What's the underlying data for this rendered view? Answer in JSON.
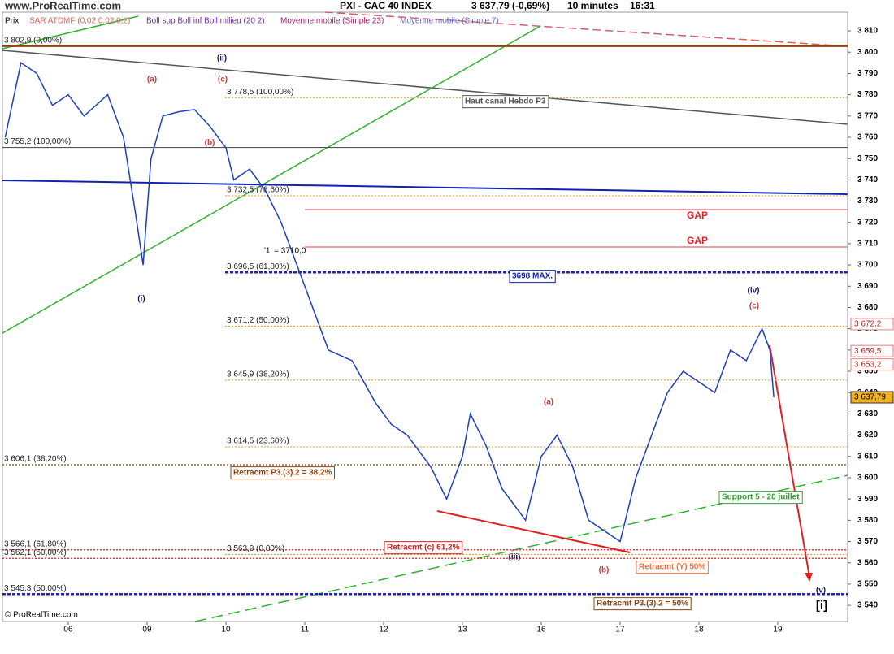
{
  "chart_data": {
    "type": "line",
    "title": "PXI - CAC 40 INDEX",
    "subtitle": "3 637,79 (-0,69%)",
    "timeframe": "10 minutes",
    "time": "16:31",
    "watermark": "www.ProRealTime.com",
    "copyright": "© ProRealTime.com",
    "indicators": [
      {
        "name": "SAR ATDMF (0,02 0,02 0,2)",
        "color": "#e06060"
      },
      {
        "name": "Boll sup Boll inf Boll milieu (20 2)",
        "color": "#7030a0"
      },
      {
        "name": "Moyenne mobile (Simple 23)",
        "color": "#a0206a"
      },
      {
        "name": "Moyenne mobile (Simple 7)",
        "color": "#6a6ad0"
      }
    ],
    "x": [
      0.2,
      0.4,
      0.6,
      0.8,
      1.0,
      1.2,
      1.5,
      1.7,
      1.85,
      1.95,
      2.05,
      2.2,
      2.4,
      2.6,
      2.8,
      3.0,
      3.1,
      3.3,
      3.5,
      3.7,
      3.9,
      4.1,
      4.3,
      4.6,
      4.9,
      5.1,
      5.3,
      5.6,
      5.8,
      6.0,
      6.1,
      6.3,
      6.5,
      6.8,
      7.0,
      7.2,
      7.4,
      7.6,
      7.8,
      8.0,
      8.1,
      8.2,
      8.4,
      8.6,
      8.8,
      9.0,
      9.2,
      9.4,
      9.6,
      9.8,
      9.9,
      9.95
    ],
    "series": [
      {
        "name": "Prix",
        "color": "#1f3fbf",
        "values": [
          3760,
          3795,
          3790,
          3775,
          3780,
          3770,
          3780,
          3760,
          3725,
          3700,
          3750,
          3770,
          3772,
          3773,
          3765,
          3755,
          3740,
          3745,
          3735,
          3720,
          3700,
          3680,
          3660,
          3655,
          3635,
          3625,
          3620,
          3605,
          3590,
          3610,
          3630,
          3615,
          3595,
          3580,
          3610,
          3620,
          3605,
          3580,
          3575,
          3570,
          3585,
          3600,
          3620,
          3640,
          3650,
          3645,
          3640,
          3660,
          3655,
          3670,
          3660,
          3637.79
        ]
      }
    ],
    "xlim": [
      0.165,
      10.887
    ],
    "xticks": [
      {
        "value": 1,
        "label": "06"
      },
      {
        "value": 2,
        "label": "09"
      },
      {
        "value": 3,
        "label": "10"
      },
      {
        "value": 4,
        "label": "11"
      },
      {
        "value": 5,
        "label": "12"
      },
      {
        "value": 6,
        "label": "13"
      },
      {
        "value": 7,
        "label": "16"
      },
      {
        "value": 8,
        "label": "17"
      },
      {
        "value": 9,
        "label": "18"
      },
      {
        "value": 10,
        "label": "19"
      }
    ],
    "ylim": [
      3532.4,
      3818.8
    ],
    "yticks": [
      {
        "value": 3540,
        "label": "3 540"
      },
      {
        "value": 3550,
        "label": "3 550"
      },
      {
        "value": 3560,
        "label": "3 560"
      },
      {
        "value": 3570,
        "label": "3 570"
      },
      {
        "value": 3580,
        "label": "3 580"
      },
      {
        "value": 3590,
        "label": "3 590"
      },
      {
        "value": 3600,
        "label": "3 600"
      },
      {
        "value": 3610,
        "label": "3 610"
      },
      {
        "value": 3620,
        "label": "3 620"
      },
      {
        "value": 3630,
        "label": "3 630"
      },
      {
        "value": 3640,
        "label": "3 640"
      },
      {
        "value": 3650,
        "label": "3 650"
      },
      {
        "value": 3660,
        "label": "3 660"
      },
      {
        "value": 3670,
        "label": "3 670"
      },
      {
        "value": 3680,
        "label": "3 680"
      },
      {
        "value": 3690,
        "label": "3 690"
      },
      {
        "value": 3700,
        "label": "3 700"
      },
      {
        "value": 3710,
        "label": "3 710"
      },
      {
        "value": 3720,
        "label": "3 720"
      },
      {
        "value": 3730,
        "label": "3 730"
      },
      {
        "value": 3740,
        "label": "3 740"
      },
      {
        "value": 3750,
        "label": "3 750"
      },
      {
        "value": 3760,
        "label": "3 760"
      },
      {
        "value": 3770,
        "label": "3 770"
      },
      {
        "value": 3780,
        "label": "3 780"
      },
      {
        "value": 3790,
        "label": "3 790"
      },
      {
        "value": 3800,
        "label": "3 800"
      },
      {
        "value": 3810,
        "label": "3 810"
      }
    ],
    "levels": [
      {
        "value": 3802.9,
        "label": "3 802,9 (0,00%)",
        "color": "#8b4513"
      },
      {
        "value": 3778.5,
        "label": "3 778,5 (100,00%)",
        "color": "#e6b84a"
      },
      {
        "value": 3755.2,
        "label": "3 755,2 (100,00%)",
        "color": "#555555"
      },
      {
        "value": 3732.5,
        "label": "3 732,5 (78,60%)",
        "color": "#f0b040"
      },
      {
        "value": 3696.5,
        "label": "3 696,5 (61,80%)",
        "color": "#2020c0"
      },
      {
        "value": 3671.2,
        "label": "3 671,2 (50,00%)",
        "color": "#f0a020"
      },
      {
        "value": 3645.9,
        "label": "3 645,9 (38,20%)",
        "color": "#f0b040"
      },
      {
        "value": 3614.5,
        "label": "3 614,5 (23,60%)",
        "color": "#f0b040"
      },
      {
        "value": 3606.1,
        "label": "3 606,1 (38,20%)",
        "color": "#8b4513"
      },
      {
        "value": 3566.1,
        "label": "3 566,1 (61,80%)",
        "color": "#e02020"
      },
      {
        "value": 3562.1,
        "label": "3 562,1 (50,00%)",
        "color": "#e02020"
      },
      {
        "value": 3563.9,
        "label": "3 563,9 (0,00%)",
        "color": "#f0a020"
      },
      {
        "value": 3545.3,
        "label": "3 545,3 (50,00%)",
        "color": "#2020c0"
      }
    ],
    "price_badges": [
      {
        "value": 3672.2,
        "label": "3 672,2"
      },
      {
        "value": 3659.5,
        "label": "3 659,5"
      },
      {
        "value": 3653.2,
        "label": "3 653,2"
      },
      {
        "value": 3637.79,
        "label": "3 637,79"
      }
    ],
    "annotations": [
      "Haut canal Hebdo P3",
      "GAP",
      "GAP",
      "3698 MAX.",
      "Retracmt P3.(3).2 = 38,2%",
      "Support 5 - 20 juillet",
      "Retracmt (c) 61,2%",
      "Retracmt (Y) 50%",
      "Retracmt P3.(3).2 = 50%",
      "'1' = 3710,0"
    ],
    "wave_labels": [
      "(i)",
      "(ii)",
      "(iii)",
      "(iv)",
      "(v)",
      "[i]",
      "(a)",
      "(b)",
      "(c)",
      "(a)",
      "(b)",
      "(c)"
    ]
  }
}
